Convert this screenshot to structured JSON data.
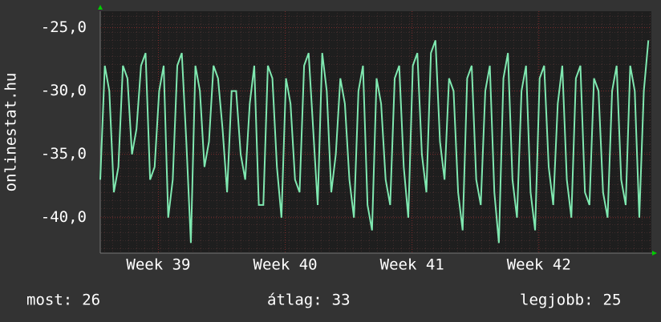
{
  "chart_data": {
    "type": "line",
    "y_label": "onlinestat.hu",
    "x": [
      0,
      6,
      12,
      18,
      24,
      30,
      36,
      42,
      48,
      54,
      60,
      66,
      72,
      78,
      84,
      90,
      96,
      102,
      108,
      114,
      120,
      126,
      132,
      138,
      144,
      150,
      156,
      162,
      168,
      174,
      180,
      186,
      192,
      198,
      204,
      210,
      216,
      222,
      228,
      234,
      240,
      246,
      252,
      258,
      264,
      270,
      276,
      282,
      288,
      294,
      300,
      306,
      312,
      318,
      324,
      330,
      336,
      342,
      348,
      354,
      360,
      366,
      372,
      378,
      384,
      390,
      396,
      402,
      408,
      414,
      420,
      426,
      432,
      438,
      444,
      450,
      456,
      462,
      468,
      474,
      480,
      486,
      492,
      498,
      504,
      510,
      516,
      522,
      528,
      534,
      540,
      546,
      552,
      558,
      564,
      570,
      576,
      582,
      588,
      594,
      600,
      606,
      612,
      618,
      624,
      630,
      636,
      642,
      648,
      654,
      660,
      666,
      672,
      678,
      684,
      690,
      696,
      702,
      708,
      714,
      720,
      726
    ],
    "series": [
      {
        "name": "onlinestat.hu",
        "color": "#7fe8b0",
        "values": [
          -37,
          -28,
          -30,
          -38,
          -36,
          -28,
          -29,
          -35,
          -33,
          -28,
          -27,
          -37,
          -36,
          -30,
          -28,
          -40,
          -37,
          -28,
          -27,
          -34,
          -42,
          -28,
          -30,
          -36,
          -34,
          -28,
          -29,
          -33,
          -38,
          -30,
          -30,
          -35,
          -37,
          -31,
          -28,
          -39,
          -39,
          -28,
          -29,
          -36,
          -40,
          -29,
          -31,
          -37,
          -38,
          -28,
          -27,
          -33,
          -39,
          -27,
          -30,
          -38,
          -35,
          -29,
          -31,
          -37,
          -40,
          -30,
          -28,
          -39,
          -41,
          -29,
          -31,
          -37,
          -39,
          -29,
          -28,
          -36,
          -40,
          -28,
          -27,
          -35,
          -38,
          -27,
          -26,
          -34,
          -37,
          -29,
          -30,
          -38,
          -41,
          -29,
          -28,
          -37,
          -39,
          -30,
          -28,
          -38,
          -42,
          -29,
          -27,
          -37,
          -40,
          -30,
          -28,
          -38,
          -41,
          -29,
          -28,
          -36,
          -39,
          -31,
          -28,
          -37,
          -40,
          -29,
          -28,
          -38,
          -39,
          -29,
          -30,
          -38,
          -40,
          -30,
          -28,
          -37,
          -39,
          -28,
          -30,
          -40,
          -30,
          -26
        ]
      }
    ],
    "xlim": [
      0,
      730
    ],
    "xticks": [
      {
        "value": 77,
        "label": "Week 39"
      },
      {
        "value": 245,
        "label": "Week 40"
      },
      {
        "value": 413,
        "label": "Week 41"
      },
      {
        "value": 581,
        "label": "Week 42"
      }
    ],
    "ylim": [
      -42.8,
      -23.7
    ],
    "yticks": [
      {
        "value": -25,
        "label": "-25,0"
      },
      {
        "value": -30,
        "label": "-30,0"
      },
      {
        "value": -35,
        "label": "-35,0"
      },
      {
        "value": -40,
        "label": "-40,0"
      }
    ],
    "grid": true,
    "footer": [
      {
        "label": "most:",
        "value": 26
      },
      {
        "label": "átlag:",
        "value": 33
      },
      {
        "label": "legjobb:",
        "value": 25
      }
    ]
  }
}
